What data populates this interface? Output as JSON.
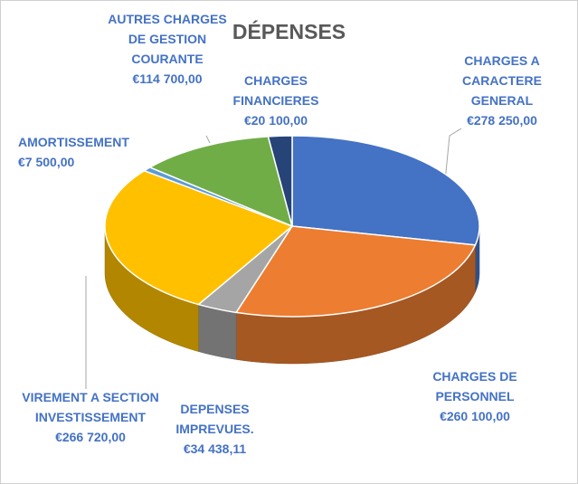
{
  "chart_data": {
    "type": "pie",
    "title": "DÉPENSES",
    "categories": [
      "CHARGES  A CARACTERE GENERAL",
      "CHARGES DE PERSONNEL",
      "DEPENSES IMPREVUES.",
      "VIREMENT A SECTION INVESTISSEMENT",
      "AMORTISSEMENT",
      "AUTRES CHARGES DE GESTION COURANTE",
      "CHARGES FINANCIERES"
    ],
    "values": [
      278250,
      260100,
      34438.11,
      266720,
      7500,
      114700,
      20100
    ],
    "value_labels": [
      "€278 250,00",
      "€260 100,00",
      "€34 438,11",
      "€266 720,00",
      "€7 500,00",
      "€114 700,00",
      "€20 100,00"
    ],
    "colors": [
      "#4472c4",
      "#ed7d31",
      "#a5a5a5",
      "#ffc000",
      "#5b9bd5",
      "#70ad47",
      "#264478"
    ]
  }
}
